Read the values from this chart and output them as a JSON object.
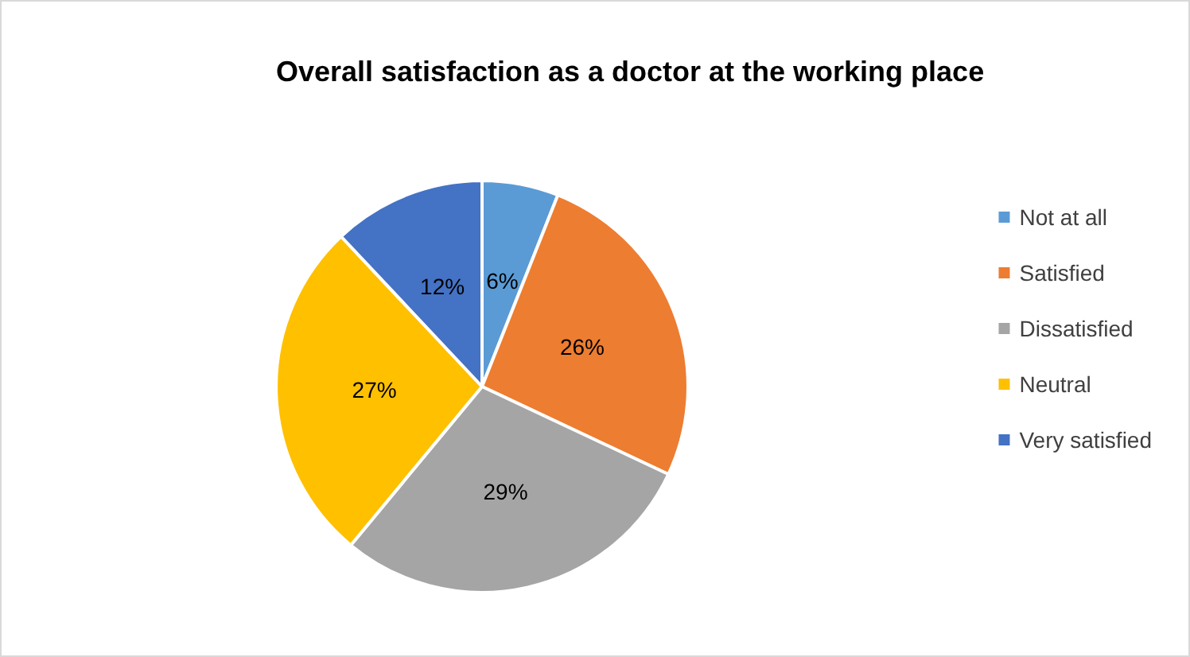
{
  "chart_data": {
    "type": "pie",
    "title": "Overall satisfaction as a doctor at the working place",
    "categories": [
      "Not at all",
      "Satisfied",
      "Dissatisfied",
      "Neutral",
      "Very satisfied"
    ],
    "values": [
      6,
      26,
      29,
      27,
      12
    ],
    "value_labels": [
      "6%",
      "26%",
      "29%",
      "27%",
      "12%"
    ],
    "colors": [
      "#5b9bd5",
      "#ed7d31",
      "#a5a5a5",
      "#ffc000",
      "#4472c4"
    ],
    "legend": "right"
  }
}
